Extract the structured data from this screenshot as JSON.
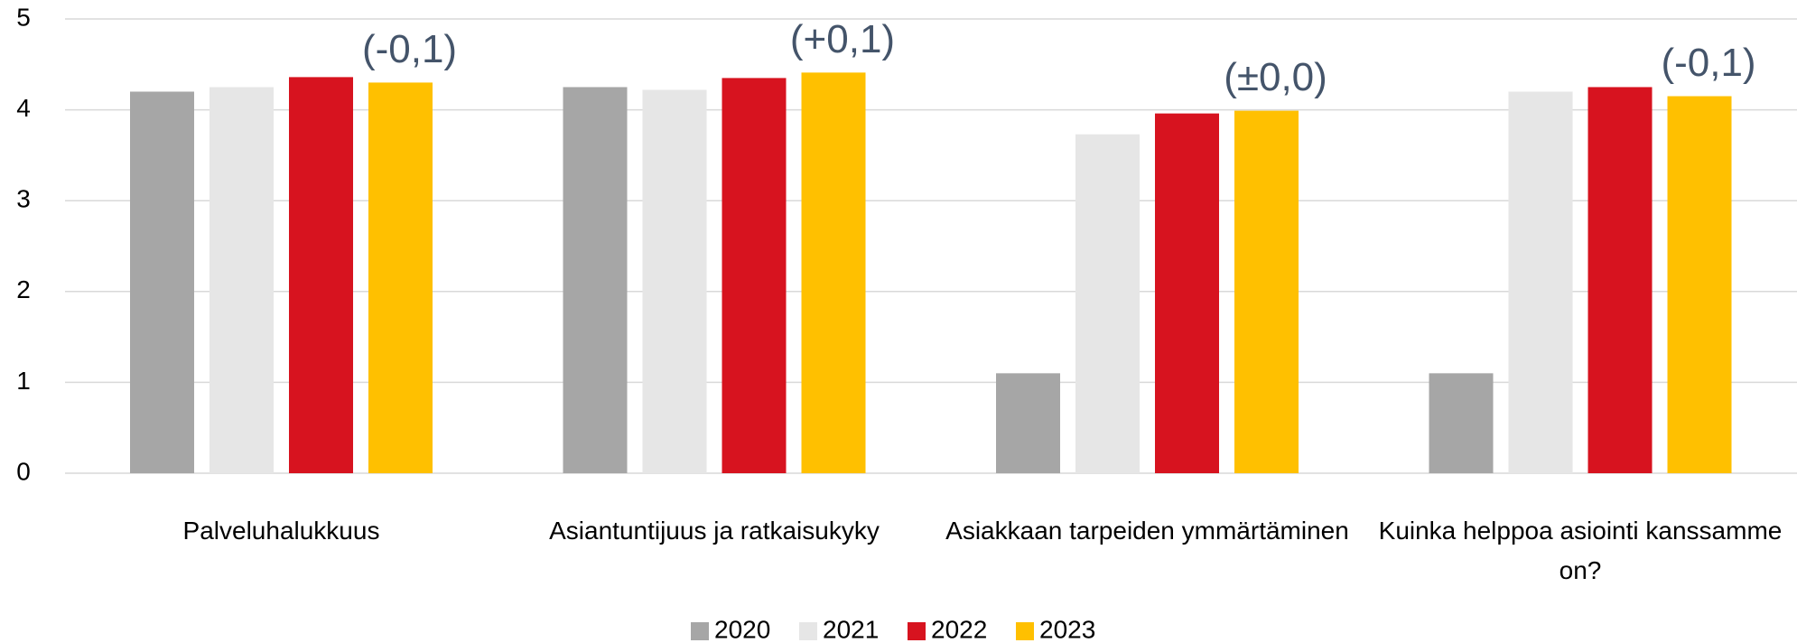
{
  "chart_data": {
    "type": "bar",
    "categories": [
      "Palveluhalukkuus",
      "Asiantuntijuus ja ratkaisukyky",
      "Asiakkaan tarpeiden ymmärtäminen",
      "Kuinka helppoa asiointi kanssamme on?"
    ],
    "series": [
      {
        "name": "2020",
        "color": "#a6a6a6",
        "values": [
          4.2,
          4.25,
          1.1,
          1.1
        ]
      },
      {
        "name": "2021",
        "color": "#e6e6e6",
        "values": [
          4.25,
          4.22,
          3.73,
          4.2
        ]
      },
      {
        "name": "2022",
        "color": "#d7131f",
        "values": [
          4.36,
          4.35,
          3.96,
          4.25
        ]
      },
      {
        "name": "2023",
        "color": "#ffc000",
        "values": [
          4.3,
          4.41,
          3.99,
          4.15
        ]
      }
    ],
    "annotations": [
      "(-0,1)",
      "(+0,1)",
      "(±0,0)",
      "(-0,1)"
    ],
    "ylim": [
      0,
      5
    ],
    "yticks": [
      0,
      1,
      2,
      3,
      4,
      5
    ],
    "grid": true,
    "legend": "bottom"
  }
}
